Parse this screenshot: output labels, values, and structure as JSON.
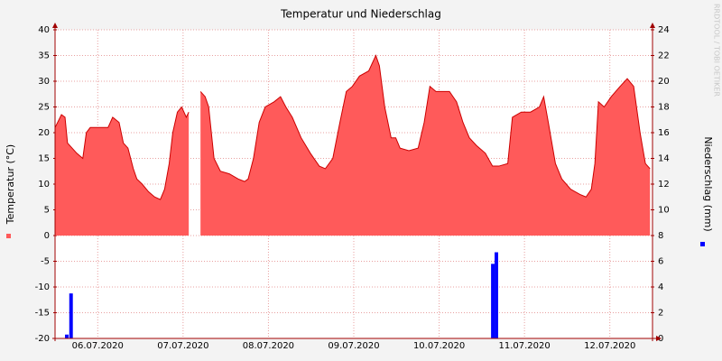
{
  "chart_data": {
    "type": "area",
    "title": "Temperatur und Niederschlag",
    "ylabel": "Temperatur (°C)",
    "y2label": "Niederschlag (mm)",
    "watermark": "RRDTOOL / TOBI OETIKER",
    "xlim": [
      0,
      168
    ],
    "xticks": [
      {
        "value": 12,
        "label": "06.07.2020"
      },
      {
        "value": 36,
        "label": "07.07.2020"
      },
      {
        "value": 60,
        "label": "08.07.2020"
      },
      {
        "value": 84,
        "label": "09.07.2020"
      },
      {
        "value": 108,
        "label": "10.07.2020"
      },
      {
        "value": 132,
        "label": "11.07.2020"
      },
      {
        "value": 156,
        "label": "12.07.2020"
      }
    ],
    "ylim": [
      -20,
      40
    ],
    "yticks": [
      -20,
      -15,
      -10,
      -5,
      0,
      5,
      10,
      15,
      20,
      25,
      30,
      35,
      40
    ],
    "y2lim": [
      0,
      24
    ],
    "y2ticks": [
      0,
      2,
      4,
      6,
      8,
      10,
      12,
      14,
      16,
      18,
      20,
      22,
      24
    ],
    "grid": true,
    "series": [
      {
        "type": "area",
        "color": "#ff5a5a",
        "line_color": "#cc0000",
        "x": [
          0,
          1.8,
          2.8,
          3.5,
          6.1,
          7.8,
          8.8,
          9.9,
          12.4,
          14.9,
          16.2,
          18,
          19.2,
          20.5,
          22,
          23,
          24.5,
          26.3,
          28,
          29.6,
          30.8,
          32.1,
          33.1,
          34.4,
          35.6,
          36.9,
          37.6,
          38.5,
          40.9,
          42.2,
          43.2,
          44.7,
          46.5,
          49,
          51.5,
          53.3,
          54.3,
          55.8,
          57.4,
          59.1,
          61.6,
          63.4,
          64.9,
          66.7,
          69.2,
          71.8,
          74.3,
          76,
          78.1,
          80.1,
          81.9,
          83.6,
          85.6,
          88.2,
          90.2,
          91.2,
          92.7,
          94.5,
          95.8,
          97,
          99.5,
          102.1,
          103.8,
          105.4,
          107.1,
          108.9,
          110.9,
          112.9,
          114.7,
          116.5,
          118.5,
          121,
          123,
          124.8,
          127.3,
          128.6,
          131.1,
          133.7,
          136.2,
          137.4,
          138.7,
          140.7,
          142.5,
          145,
          147.6,
          149.3,
          150.8,
          151.8,
          152.8,
          154.4,
          156.4,
          158.9,
          160.9,
          162.7,
          164.5,
          166,
          167.3
        ],
        "values": [
          21,
          23.5,
          23,
          18,
          16,
          15,
          20,
          21,
          21,
          21,
          23,
          22,
          18,
          17,
          13,
          11,
          10,
          8.5,
          7.5,
          7,
          9,
          14,
          20,
          24,
          25,
          23,
          24,
          null,
          28,
          27,
          25,
          15,
          12.5,
          12,
          11,
          10.5,
          11,
          15,
          22,
          25,
          26,
          27,
          25,
          23,
          19,
          16,
          13.5,
          13,
          15,
          22,
          28,
          29,
          31,
          32,
          35,
          33,
          25,
          19,
          19,
          17,
          16.5,
          17,
          22,
          29,
          28,
          28,
          28,
          26,
          22,
          19,
          17.5,
          16,
          13.5,
          13.5,
          14,
          23,
          24,
          24,
          25,
          27,
          22,
          14,
          11,
          9,
          8,
          7.5,
          9,
          14,
          26,
          25,
          27,
          29,
          30.5,
          29,
          20,
          14,
          13
        ]
      },
      {
        "type": "bar",
        "axis": "y2",
        "color": "#0000ff",
        "x": [
          2.8,
          4,
          122.6,
          123.6
        ],
        "values": [
          0.3,
          3.5,
          5.8,
          6.7
        ]
      }
    ]
  }
}
